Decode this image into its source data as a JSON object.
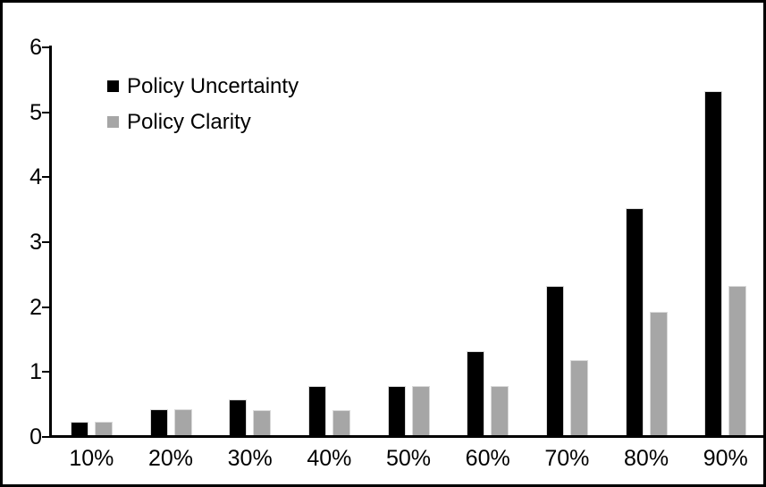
{
  "chart_data": {
    "type": "bar",
    "title": "",
    "xlabel": "",
    "ylabel": "",
    "categories": [
      "10%",
      "20%",
      "30%",
      "40%",
      "50%",
      "60%",
      "70%",
      "80%",
      "90%"
    ],
    "series": [
      {
        "name": "Policy Uncertainty",
        "color": "#000000",
        "values": [
          0.2,
          0.4,
          0.55,
          0.75,
          0.75,
          1.3,
          2.3,
          3.5,
          5.3
        ]
      },
      {
        "name": "Policy Clarity",
        "color": "#a6a6a6",
        "values": [
          0.2,
          0.4,
          0.38,
          0.38,
          0.75,
          0.75,
          1.15,
          1.9,
          2.3
        ]
      }
    ],
    "ylim": [
      0,
      6
    ],
    "yticks": [
      0,
      1,
      2,
      3,
      4,
      5,
      6
    ],
    "grid": false,
    "legend_position": "top-left",
    "bar_outline_color": "#d9d9d9",
    "axis_color": "#000000",
    "frame_border_color": "#000000",
    "background_color": "#ffffff"
  }
}
